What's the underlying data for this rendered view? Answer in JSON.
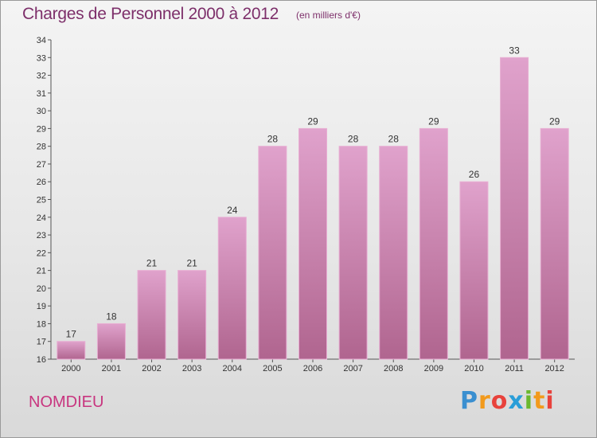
{
  "header": {
    "title": "Charges de Personnel 2000 à 2012",
    "subtitle": "(en milliers d'€)"
  },
  "footer": {
    "commune": "NOMDIEU",
    "logo_letters": [
      "P",
      "r",
      "o",
      "x",
      "i",
      "t",
      "i"
    ],
    "logo_colors": [
      "#3a8fd0",
      "#f29a1c",
      "#e8423c",
      "#2a9ed8",
      "#6bb82e",
      "#f29a1c",
      "#e8423c"
    ]
  },
  "colors": {
    "bar_fill": "#d98cbf",
    "bar_edge": "#e8aed3",
    "axis": "#555555",
    "grid": "#cccccc"
  },
  "chart_data": {
    "type": "bar",
    "title": "Charges de Personnel 2000 à 2012",
    "subtitle": "(en milliers d'€)",
    "xlabel": "",
    "ylabel": "",
    "categories": [
      "2000",
      "2001",
      "2002",
      "2003",
      "2004",
      "2005",
      "2006",
      "2007",
      "2008",
      "2009",
      "2010",
      "2011",
      "2012"
    ],
    "values": [
      17,
      18,
      21,
      21,
      24,
      28,
      29,
      28,
      28,
      29,
      26,
      33,
      29
    ],
    "ylim": [
      16,
      34
    ],
    "yticks": [
      16,
      17,
      18,
      19,
      20,
      21,
      22,
      23,
      24,
      25,
      26,
      27,
      28,
      29,
      30,
      31,
      32,
      33,
      34
    ],
    "grid": false,
    "legend": "none"
  }
}
